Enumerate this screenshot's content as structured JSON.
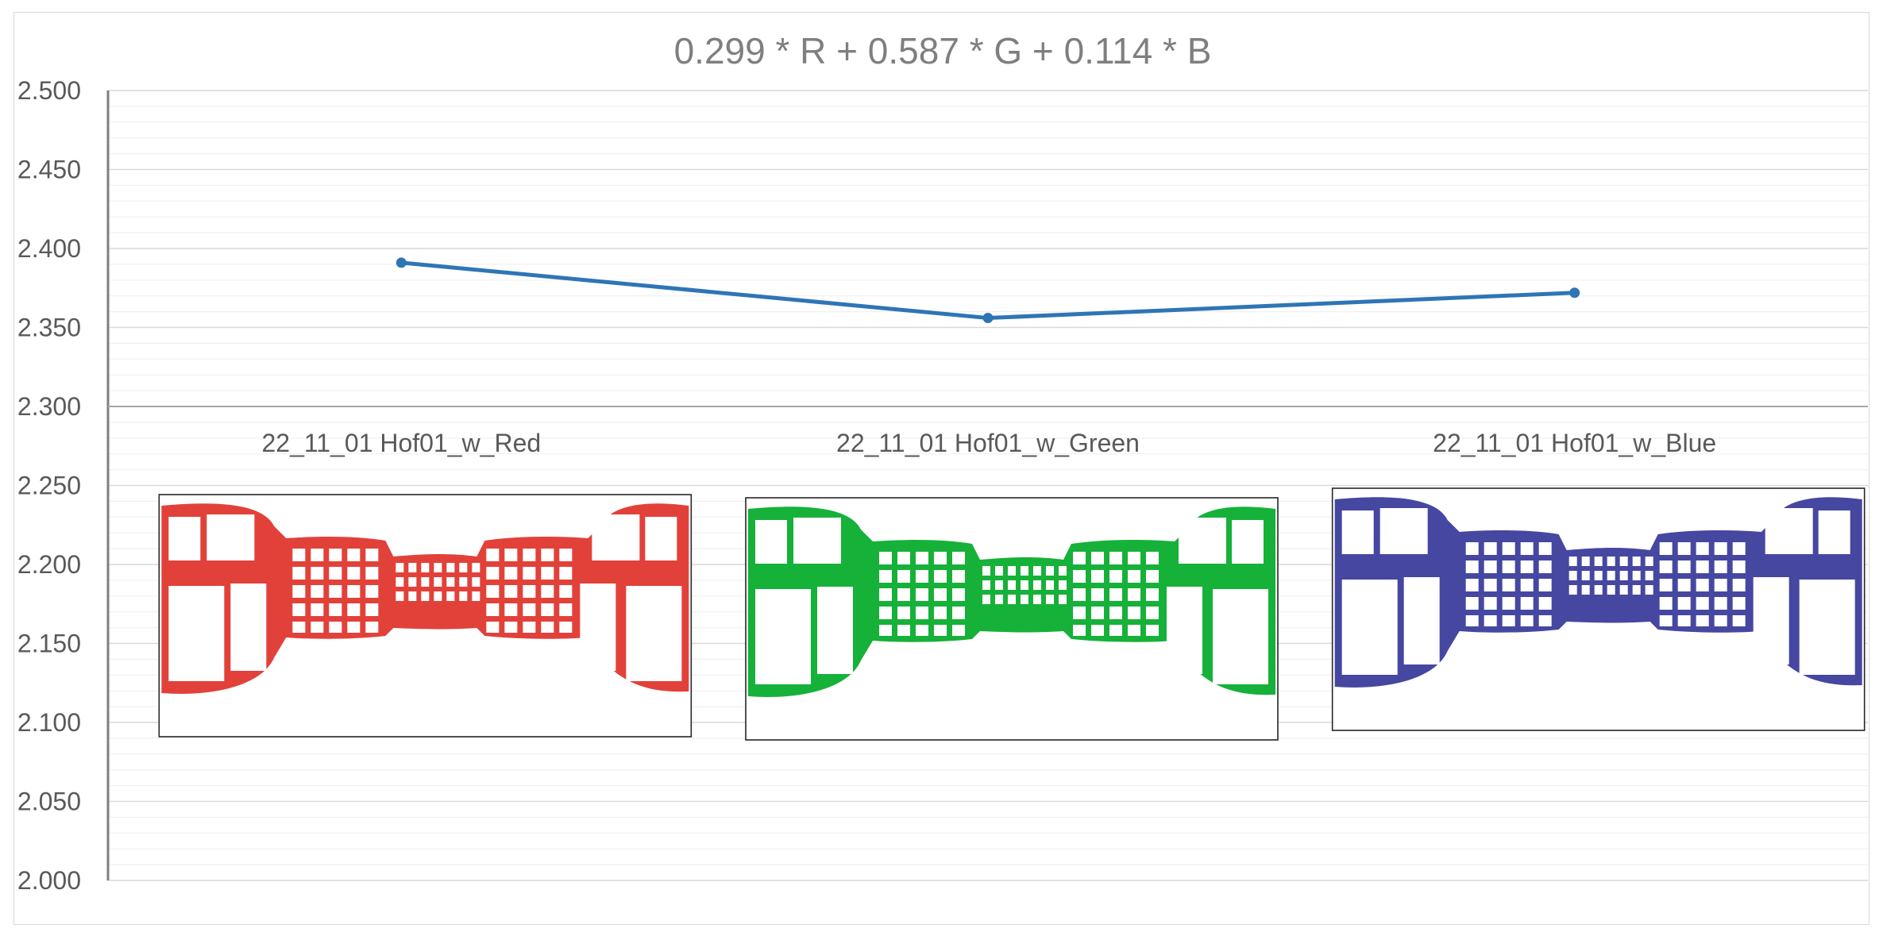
{
  "chart_data": {
    "type": "line",
    "title": "0.299 * R + 0.587 * G + 0.114 * B",
    "categories": [
      "22_11_01 Hof01_w_Red",
      "22_11_01 Hof01_w_Green",
      "22_11_01 Hof01_w_Blue"
    ],
    "series": [
      {
        "values": [
          2.391,
          2.356,
          2.372
        ],
        "color": "#2e75b6"
      }
    ],
    "ylim": [
      2.0,
      2.5
    ],
    "yticks": [
      "2.500",
      "2.450",
      "2.400",
      "2.350",
      "2.300",
      "2.250",
      "2.200",
      "2.150",
      "2.100",
      "2.050",
      "2.000"
    ],
    "xaxis_crosses_at": 2.3,
    "grid": true,
    "legend": "none",
    "thumbnails": [
      {
        "color": "#e0372f",
        "icon": "courtyard-panorama-red"
      },
      {
        "color": "#0aad2e",
        "icon": "courtyard-panorama-green"
      },
      {
        "color": "#3b3d9c",
        "icon": "courtyard-panorama-blue"
      }
    ]
  }
}
